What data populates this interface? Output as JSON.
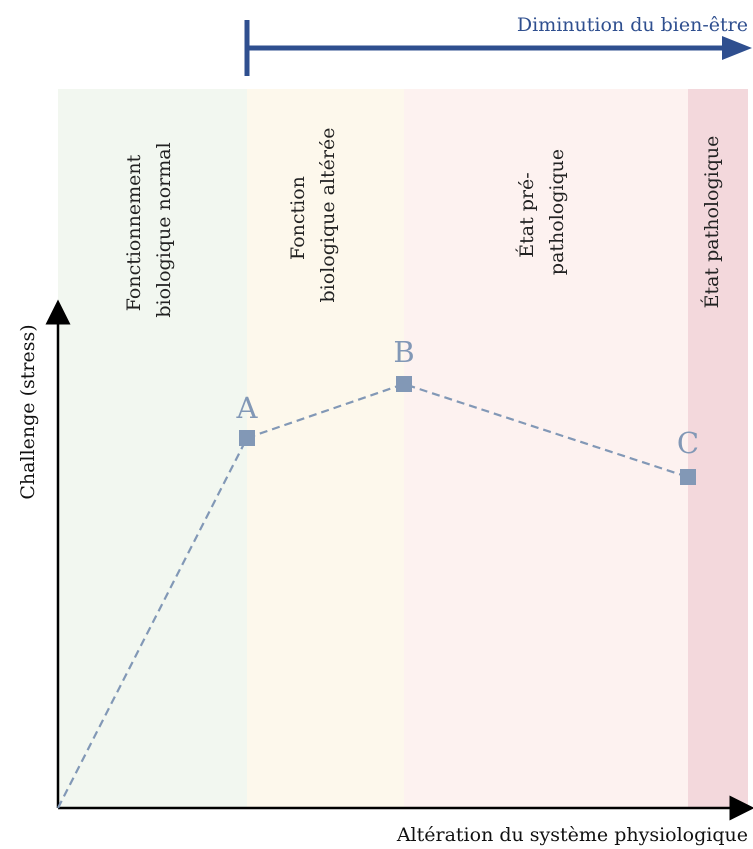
{
  "colors": {
    "banner": "#2f4f8f",
    "point": "#8298b6",
    "line": "#8298b6",
    "axis": "#000000",
    "zone_normal": "#f2f7f0",
    "zone_altered": "#fdf8ec",
    "zone_prepath": "#fdf2f0",
    "zone_path": "#f3d8dc"
  },
  "banner": {
    "label": "Diminution du bien-être"
  },
  "zones": [
    {
      "lines": [
        "Fonctionnement",
        "biologique normal"
      ]
    },
    {
      "lines": [
        "Fonction",
        "biologique altérée"
      ]
    },
    {
      "lines": [
        "État pré-",
        "pathologique"
      ]
    },
    {
      "lines": [
        "État pathologique"
      ]
    }
  ],
  "axes": {
    "ylabel": "Challenge (stress)",
    "xlabel": "Altération du système physiologique"
  },
  "points": [
    {
      "label": "A"
    },
    {
      "label": "B"
    },
    {
      "label": "C"
    }
  ]
}
